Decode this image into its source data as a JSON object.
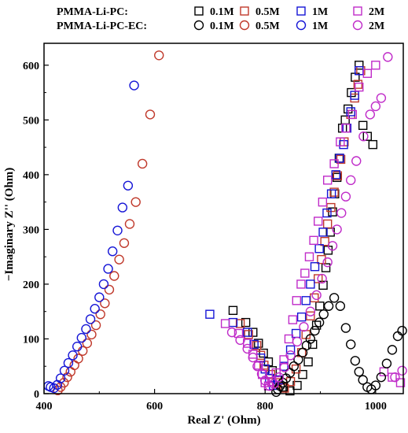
{
  "chart_data": {
    "type": "scatter",
    "xlabel": "Real Z' (Ohm)",
    "ylabel": "−Imaginary Z'' (Ohm)",
    "xlim": [
      400,
      1050
    ],
    "ylim": [
      0,
      640
    ],
    "xticks": [
      400,
      600,
      800,
      1000
    ],
    "yticks": [
      0,
      100,
      200,
      300,
      400,
      500,
      600
    ],
    "legend": {
      "placement": "top",
      "rows": [
        {
          "label": "PMMA-Li-PC:",
          "marker": "square"
        },
        {
          "label": "PMMA-Li-PC-EC:",
          "marker": "circle"
        }
      ],
      "concentrations": [
        "0.1M",
        "0.5M",
        "1M",
        "2M"
      ]
    },
    "colors": {
      "0.1M": "#000000",
      "0.5M": "#c0392b",
      "1M": "#1515d6",
      "2M": "#c02cc9"
    },
    "series": [
      {
        "name": "0.1M",
        "group": "PMMA-Li-PC:",
        "marker": "square",
        "color": "#000000",
        "x": [
          742,
          765,
          778,
          788,
          797,
          806,
          813,
          822,
          833,
          845,
          858,
          868,
          878,
          886,
          893,
          899,
          905,
          910,
          914,
          918,
          922,
          926,
          930,
          934,
          940,
          945,
          950,
          956,
          963,
          970,
          977,
          985,
          995
        ],
        "y": [
          152,
          130,
          112,
          92,
          74,
          58,
          42,
          25,
          12,
          5,
          15,
          35,
          58,
          90,
          125,
          160,
          198,
          230,
          262,
          295,
          332,
          365,
          395,
          430,
          485,
          500,
          520,
          550,
          578,
          600,
          490,
          470,
          455
        ]
      },
      {
        "name": "0.5M",
        "group": "PMMA-Li-PC:",
        "marker": "square",
        "color": "#c0392b",
        "x": [
          755,
          770,
          785,
          792,
          798,
          810,
          822,
          835,
          846,
          856,
          866,
          874,
          882,
          889,
          896,
          902,
          908,
          913,
          919,
          925,
          931,
          937,
          943,
          948,
          955,
          962,
          968,
          973
        ],
        "y": [
          128,
          108,
          88,
          70,
          52,
          35,
          20,
          10,
          22,
          45,
          75,
          108,
          142,
          175,
          210,
          245,
          278,
          310,
          340,
          368,
          398,
          428,
          460,
          485,
          510,
          540,
          565,
          590
        ]
      },
      {
        "name": "1M",
        "group": "PMMA-Li-PC:",
        "marker": "square",
        "color": "#1515d6",
        "x": [
          700,
          742,
          768,
          780,
          792,
          800,
          808,
          815,
          824,
          834,
          846,
          856,
          866,
          874,
          882,
          890,
          898,
          905,
          912,
          920,
          928,
          935,
          942,
          948,
          955,
          962,
          970
        ],
        "y": [
          145,
          130,
          112,
          90,
          65,
          45,
          28,
          15,
          25,
          50,
          80,
          110,
          140,
          170,
          200,
          232,
          265,
          295,
          330,
          365,
          400,
          430,
          455,
          485,
          515,
          545,
          590
        ]
      },
      {
        "name": "2M",
        "group": "PMMA-Li-PC:",
        "marker": "square",
        "color": "#c02cc9",
        "x": [
          728,
          752,
          768,
          778,
          788,
          795,
          800,
          806,
          812,
          820,
          834,
          843,
          850,
          857,
          865,
          872,
          880,
          888,
          896,
          904,
          913,
          925,
          936,
          946,
          958,
          970,
          985,
          1000,
          1015,
          1030,
          1045
        ],
        "y": [
          128,
          110,
          92,
          72,
          52,
          35,
          20,
          14,
          22,
          38,
          62,
          100,
          135,
          170,
          200,
          220,
          250,
          280,
          315,
          350,
          390,
          420,
          460,
          485,
          510,
          560,
          585,
          600,
          40,
          30,
          20
        ]
      },
      {
        "name": "0.1M",
        "group": "PMMA-Li-PC-EC:",
        "marker": "circle",
        "color": "#000000",
        "x": [
          820,
          823,
          827,
          832,
          838,
          845,
          852,
          860,
          868,
          875,
          882,
          890,
          898,
          906,
          915,
          925,
          936,
          946,
          955,
          963,
          970,
          977,
          985,
          992,
          1000,
          1010,
          1020,
          1030,
          1040,
          1048
        ],
        "y": [
          3,
          8,
          14,
          20,
          28,
          38,
          50,
          62,
          75,
          88,
          100,
          115,
          130,
          145,
          160,
          175,
          160,
          120,
          90,
          60,
          40,
          25,
          12,
          8,
          15,
          30,
          55,
          80,
          105,
          115
        ]
      },
      {
        "name": "0.5M",
        "group": "PMMA-Li-PC-EC:",
        "marker": "circle",
        "color": "#c0392b",
        "x": [
          425,
          430,
          436,
          442,
          448,
          455,
          462,
          470,
          478,
          486,
          494,
          502,
          510,
          518,
          527,
          536,
          545,
          555,
          566,
          578,
          592,
          608
        ],
        "y": [
          6,
          12,
          20,
          30,
          40,
          52,
          64,
          78,
          92,
          108,
          125,
          145,
          165,
          190,
          215,
          245,
          275,
          310,
          350,
          420,
          510,
          618
        ]
      },
      {
        "name": "1M",
        "group": "PMMA-Li-PC-EC:",
        "marker": "circle",
        "color": "#1515d6",
        "x": [
          408,
          412,
          418,
          424,
          430,
          437,
          444,
          452,
          460,
          468,
          476,
          484,
          492,
          500,
          508,
          516,
          524,
          533,
          542,
          552,
          563
        ],
        "y": [
          14,
          12,
          10,
          16,
          28,
          42,
          56,
          70,
          86,
          102,
          118,
          136,
          155,
          176,
          200,
          228,
          260,
          298,
          340,
          380,
          563
        ]
      },
      {
        "name": "2M",
        "group": "PMMA-Li-PC-EC:",
        "marker": "circle",
        "color": "#c02cc9",
        "x": [
          740,
          755,
          768,
          778,
          786,
          794,
          800,
          808,
          816,
          825,
          835,
          846,
          858,
          870,
          882,
          893,
          903,
          913,
          922,
          930,
          938,
          946,
          955,
          965,
          978,
          990,
          1000,
          1010,
          1022,
          1035,
          1048
        ],
        "y": [
          112,
          98,
          82,
          66,
          50,
          36,
          24,
          14,
          18,
          30,
          48,
          70,
          95,
          122,
          150,
          180,
          210,
          240,
          270,
          300,
          330,
          360,
          390,
          425,
          470,
          510,
          525,
          540,
          615,
          30,
          42
        ]
      }
    ]
  }
}
